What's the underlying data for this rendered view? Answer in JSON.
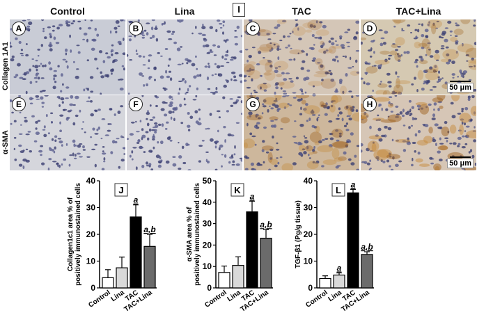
{
  "figure_label": "I",
  "columns": [
    "Control",
    "Lina",
    "TAC",
    "TAC+Lina"
  ],
  "rows": [
    {
      "label": "Collagen 1A1",
      "letters": [
        "A",
        "B",
        "C",
        "D"
      ]
    },
    {
      "label": "α-SMA",
      "letters": [
        "E",
        "F",
        "G",
        "H"
      ]
    }
  ],
  "scale_bar": "50 μm",
  "colors": {
    "control": "#ffffff",
    "lina": "#d9d9d9",
    "tac": "#000000",
    "tac_lina": "#6b6b6b"
  },
  "chart_data": [
    {
      "type": "bar",
      "panel": "J",
      "ylabel": "Collagen1c1 area % of positively immunostained cells",
      "categories": [
        "Control",
        "Lina",
        "TAC",
        "TAC+Lina"
      ],
      "values": [
        3.8,
        7.5,
        26.5,
        15.5
      ],
      "errors": [
        3.0,
        4.0,
        4.5,
        4.5
      ],
      "annotations": [
        "",
        "",
        "a",
        "a,b"
      ],
      "ylim": [
        0,
        40
      ],
      "yticks": [
        0,
        10,
        20,
        30,
        40
      ]
    },
    {
      "type": "bar",
      "panel": "K",
      "ylabel": "α-SMA area % of positively immunostained cells",
      "categories": [
        "Control",
        "Lina",
        "TAC",
        "TAC+Lina"
      ],
      "values": [
        7.2,
        10.5,
        35.5,
        23.2
      ],
      "errors": [
        3.0,
        4.0,
        5.0,
        4.0
      ],
      "annotations": [
        "",
        "",
        "a",
        "a,b"
      ],
      "ylim": [
        0,
        50
      ],
      "yticks": [
        0,
        10,
        20,
        30,
        40,
        50
      ]
    },
    {
      "type": "bar",
      "panel": "L",
      "ylabel": "TGF-β1 (Pg/g tissue)",
      "categories": [
        "Control",
        "Lina",
        "TAC",
        "TAC+Lina"
      ],
      "values": [
        3.5,
        4.8,
        35.5,
        12.5
      ],
      "errors": [
        1.0,
        0.8,
        1.3,
        1.0
      ],
      "annotations": [
        "",
        "a",
        "a",
        "a,b"
      ],
      "ylim": [
        0,
        40
      ],
      "yticks": [
        0,
        10,
        20,
        30,
        40
      ]
    }
  ]
}
